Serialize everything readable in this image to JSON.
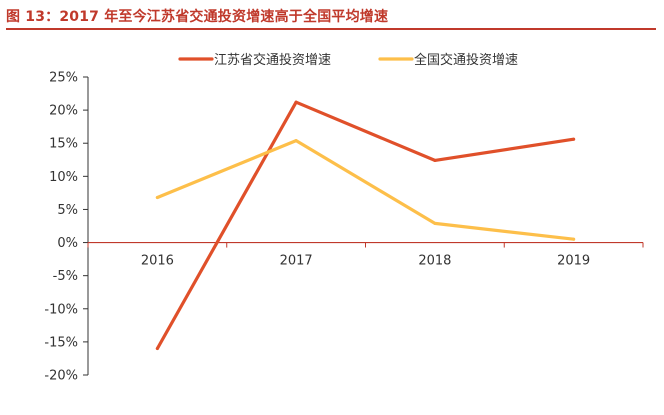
{
  "title": "图 13：2017 年至今江苏省交通投资增速高于全国平均增速",
  "chart_data": {
    "type": "line",
    "categories": [
      "2016",
      "2017",
      "2018",
      "2019"
    ],
    "series": [
      {
        "name": "江苏省交通投资增速",
        "values": [
          -16.0,
          21.2,
          12.4,
          15.6
        ],
        "color": "#e0502a"
      },
      {
        "name": "全国交通投资增速",
        "values": [
          6.8,
          15.4,
          2.9,
          0.5
        ],
        "color": "#fdbf4a"
      }
    ],
    "ylim": [
      -20,
      25
    ],
    "yticks": [
      "25%",
      "20%",
      "15%",
      "10%",
      "5%",
      "0%",
      "-5%",
      "-10%",
      "-15%",
      "-20%"
    ],
    "legend": "top"
  }
}
